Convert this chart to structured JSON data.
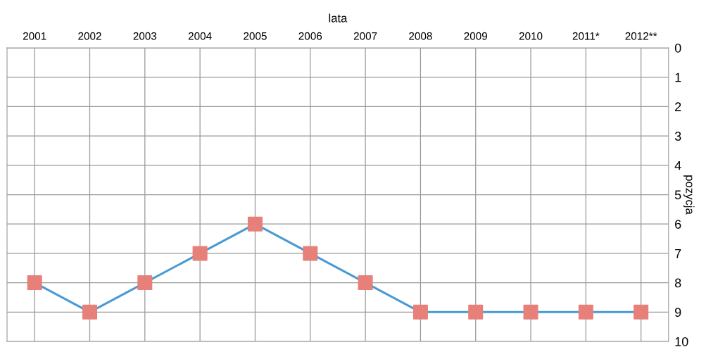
{
  "chart_data": {
    "type": "line",
    "xlabel": "lata",
    "ylabel": "pozycja",
    "categories": [
      "2001",
      "2002",
      "2003",
      "2004",
      "2005",
      "2006",
      "2007",
      "2008",
      "2009",
      "2010",
      "2011*",
      "2012**"
    ],
    "series": [
      {
        "color": "#4a9ad4",
        "colors": [
          "#e8807a",
          "#e8807a",
          "#e8807a",
          "#e8807a",
          "#e8807a",
          "#e8807a",
          "#e8807a",
          "#e8807a",
          "#e8807a",
          "#e8807a",
          "#e8807a",
          "#e8807a"
        ],
        "values": [
          8,
          9,
          8,
          7,
          6,
          7,
          8,
          9,
          9,
          9,
          9,
          9
        ]
      }
    ],
    "ylim": [
      10,
      0
    ],
    "yticks": [
      0,
      1,
      2,
      3,
      4,
      5,
      6,
      7,
      8,
      9,
      10
    ],
    "grid": true,
    "marker": "square",
    "line_style": "solid"
  }
}
